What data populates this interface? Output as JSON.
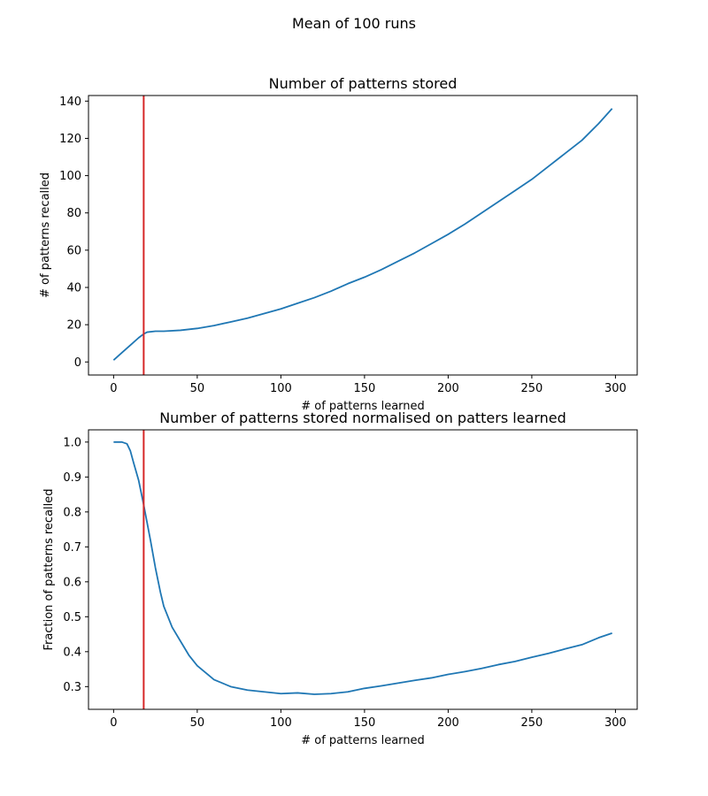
{
  "suptitle": "Mean of 100 runs",
  "chart_data": [
    {
      "type": "line",
      "title": "Number of patterns stored",
      "xlabel": "# of patterns learned",
      "ylabel": "# of patterns recalled",
      "xlim": [
        -15,
        313
      ],
      "ylim": [
        -7,
        143
      ],
      "xticks": [
        0,
        50,
        100,
        150,
        200,
        250,
        300
      ],
      "yticks": [
        0,
        20,
        40,
        60,
        80,
        100,
        120,
        140
      ],
      "vline": {
        "x": 18,
        "color": "#d62728"
      },
      "series": [
        {
          "color": "#1f77b4",
          "x": [
            0,
            5,
            10,
            15,
            18,
            20,
            25,
            30,
            40,
            50,
            60,
            70,
            80,
            90,
            100,
            110,
            120,
            130,
            140,
            150,
            160,
            170,
            180,
            190,
            200,
            210,
            220,
            230,
            240,
            250,
            260,
            270,
            280,
            290,
            298
          ],
          "y": [
            1,
            5,
            9,
            13,
            15,
            16,
            16.5,
            16.5,
            17,
            18,
            19.5,
            21.5,
            23.5,
            26,
            28.5,
            31.5,
            34.5,
            38,
            42,
            45.5,
            49.5,
            54,
            58.5,
            63.5,
            68.5,
            74,
            80,
            86,
            92,
            98,
            105,
            112,
            119,
            128,
            136
          ]
        }
      ]
    },
    {
      "type": "line",
      "title": "Number of patterns stored normalised on patters learned",
      "xlabel": "# of patterns learned",
      "ylabel": "Fraction of patterns recalled",
      "xlim": [
        -15,
        313
      ],
      "ylim": [
        0.235,
        1.035
      ],
      "xticks": [
        0,
        50,
        100,
        150,
        200,
        250,
        300
      ],
      "yticks": [
        0.3,
        0.4,
        0.5,
        0.6,
        0.7,
        0.8,
        0.9,
        1.0
      ],
      "vline": {
        "x": 18,
        "color": "#d62728"
      },
      "series": [
        {
          "color": "#1f77b4",
          "x": [
            0,
            5,
            8,
            10,
            12,
            15,
            18,
            20,
            22,
            25,
            28,
            30,
            35,
            40,
            45,
            50,
            55,
            60,
            70,
            80,
            90,
            100,
            110,
            120,
            130,
            140,
            150,
            160,
            170,
            180,
            190,
            200,
            210,
            220,
            230,
            240,
            250,
            260,
            270,
            280,
            290,
            298
          ],
          "y": [
            1.0,
            1.0,
            0.995,
            0.975,
            0.94,
            0.89,
            0.82,
            0.77,
            0.72,
            0.64,
            0.57,
            0.53,
            0.47,
            0.43,
            0.39,
            0.36,
            0.34,
            0.32,
            0.3,
            0.29,
            0.285,
            0.28,
            0.282,
            0.278,
            0.28,
            0.285,
            0.295,
            0.302,
            0.31,
            0.318,
            0.325,
            0.335,
            0.343,
            0.352,
            0.363,
            0.372,
            0.384,
            0.395,
            0.408,
            0.42,
            0.44,
            0.453
          ]
        }
      ]
    }
  ]
}
